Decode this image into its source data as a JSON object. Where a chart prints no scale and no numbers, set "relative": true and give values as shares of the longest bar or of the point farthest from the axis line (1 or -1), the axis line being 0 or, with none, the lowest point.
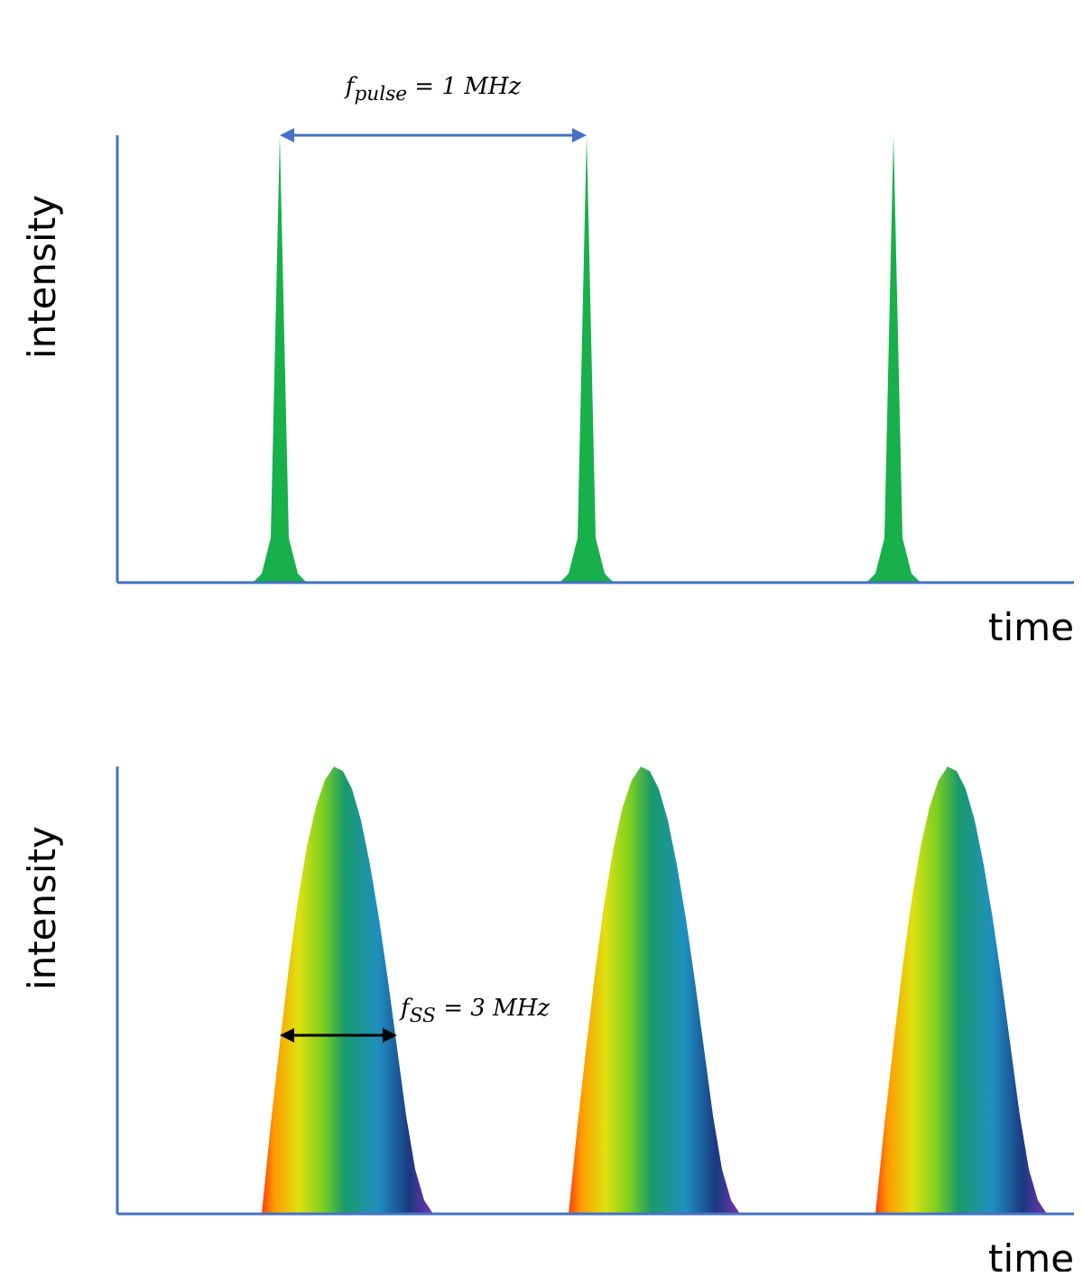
{
  "chart_data": [
    {
      "type": "area",
      "relative": true,
      "xlabel": "time",
      "ylabel": "intensity",
      "annotations": [
        "f$_{pulse}$ = 1 MHz"
      ],
      "categories": [
        null,
        null,
        null,
        null,
        null,
        null,
        null,
        null,
        null,
        null,
        null,
        null,
        null,
        null,
        null,
        null,
        null,
        null,
        null,
        null,
        null,
        null,
        null,
        null,
        null,
        null,
        null,
        null,
        null,
        null,
        null,
        null,
        null,
        null,
        null,
        null,
        null,
        null,
        null,
        null,
        null,
        null,
        null,
        null,
        null,
        null,
        null,
        null,
        null,
        null,
        null,
        null,
        null,
        null,
        null,
        null,
        null,
        null,
        null,
        null,
        null,
        null,
        null,
        null,
        null,
        null,
        null,
        null,
        null,
        null,
        null,
        null,
        null,
        null,
        null,
        null,
        null,
        null,
        null,
        null,
        null,
        null,
        null,
        null,
        null,
        null,
        null,
        null,
        null,
        null,
        null,
        null,
        null,
        null,
        null,
        null,
        null,
        null,
        null,
        null,
        null,
        null,
        null,
        null,
        null,
        null,
        null
      ],
      "series": [
        {
          "color": "#17b04a",
          "values": [
            0,
            0,
            0,
            0,
            0,
            0,
            0,
            0,
            0,
            0,
            0,
            0,
            0,
            0,
            0,
            0,
            0.02,
            0.1,
            1,
            0.1,
            0.02,
            0,
            0,
            0,
            0,
            0,
            0,
            0,
            0,
            0,
            0,
            0,
            0,
            0,
            0,
            0,
            0,
            0,
            0,
            0,
            0,
            0,
            0,
            0,
            0,
            0,
            0,
            0,
            0,
            0,
            0.02,
            0.1,
            1,
            0.1,
            0.02,
            0,
            0,
            0,
            0,
            0,
            0,
            0,
            0,
            0,
            0,
            0,
            0,
            0,
            0,
            0,
            0,
            0,
            0,
            0,
            0,
            0,
            0,
            0,
            0,
            0,
            0,
            0,
            0,
            0,
            0.02,
            0.1,
            1,
            0.1,
            0.02,
            0,
            0,
            0,
            0,
            0,
            0,
            0,
            0,
            0,
            0,
            0,
            0,
            0,
            0,
            0,
            0,
            0,
            0
          ]
        }
      ]
    },
    {
      "type": "area",
      "relative": true,
      "xlabel": "time",
      "ylabel": "intensity",
      "annotations": [
        "f$_{SS}$ = 3 MHz"
      ],
      "categories": [
        null,
        null,
        null,
        null,
        null,
        null,
        null,
        null,
        null,
        null,
        null,
        null,
        null,
        null,
        null,
        null,
        null,
        null,
        null,
        null,
        null,
        null,
        null,
        null,
        null,
        null,
        null,
        null,
        null,
        null,
        null,
        null,
        null,
        null,
        null,
        null,
        null,
        null,
        null,
        null,
        null,
        null,
        null,
        null,
        null,
        null,
        null,
        null,
        null,
        null,
        null,
        null,
        null,
        null,
        null,
        null,
        null,
        null,
        null,
        null,
        null,
        null,
        null,
        null,
        null,
        null,
        null,
        null,
        null,
        null,
        null,
        null,
        null,
        null,
        null,
        null,
        null,
        null,
        null,
        null,
        null,
        null,
        null,
        null,
        null,
        null,
        null,
        null,
        null,
        null,
        null,
        null,
        null,
        null,
        null,
        null,
        null,
        null,
        null,
        null,
        null,
        null,
        null,
        null,
        null,
        null,
        null
      ],
      "series": [
        {
          "color": "#1a9a6a",
          "values": [
            0,
            0,
            0,
            0,
            0,
            0,
            0,
            0,
            0,
            0,
            0,
            0,
            0,
            0,
            0,
            0,
            0,
            0.2,
            0.38,
            0.55,
            0.7,
            0.82,
            0.91,
            0.97,
            1,
            0.99,
            0.95,
            0.88,
            0.78,
            0.66,
            0.52,
            0.37,
            0.22,
            0.1,
            0.03,
            0,
            0,
            0,
            0,
            0,
            0,
            0,
            0,
            0,
            0,
            0,
            0,
            0,
            0,
            0,
            0,
            0.2,
            0.38,
            0.55,
            0.7,
            0.82,
            0.91,
            0.97,
            1,
            0.99,
            0.95,
            0.88,
            0.78,
            0.66,
            0.52,
            0.37,
            0.22,
            0.1,
            0.03,
            0,
            0,
            0,
            0,
            0,
            0,
            0,
            0,
            0,
            0,
            0,
            0,
            0,
            0,
            0,
            0,
            0.2,
            0.38,
            0.55,
            0.7,
            0.82,
            0.91,
            0.97,
            1,
            0.99,
            0.95,
            0.88,
            0.78,
            0.66,
            0.52,
            0.37,
            0.22,
            0.1,
            0.03,
            0,
            0,
            0,
            0
          ]
        }
      ]
    }
  ]
}
